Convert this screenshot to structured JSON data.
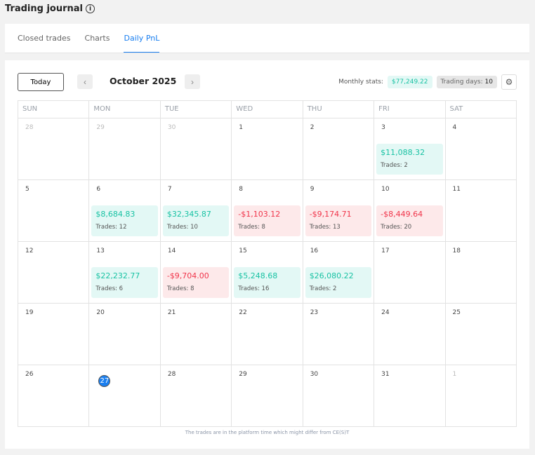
{
  "header": {
    "title": "Trading journal",
    "info_icon": "info-icon"
  },
  "tabs": [
    {
      "label": "Closed trades",
      "active": false
    },
    {
      "label": "Charts",
      "active": false
    },
    {
      "label": "Daily PnL",
      "active": true
    }
  ],
  "toolbar": {
    "today_label": "Today",
    "prev_icon": "‹",
    "next_icon": "›",
    "month": "October 2025",
    "stats_label": "Monthly stats:",
    "monthly_pnl": "$77,249.22",
    "trading_days_label": "Trading days:",
    "trading_days": "10",
    "settings_icon": "⚙"
  },
  "weekdays": [
    "SUN",
    "MON",
    "TUE",
    "WED",
    "THU",
    "FRI",
    "SAT"
  ],
  "weeks": [
    [
      {
        "d": "28",
        "muted": true
      },
      {
        "d": "29",
        "muted": true
      },
      {
        "d": "30",
        "muted": true
      },
      {
        "d": "1"
      },
      {
        "d": "2"
      },
      {
        "d": "3",
        "pnl": "$11,088.32",
        "trades": "Trades: 2",
        "type": "pos"
      },
      {
        "d": "4"
      }
    ],
    [
      {
        "d": "5"
      },
      {
        "d": "6",
        "pnl": "$8,684.83",
        "trades": "Trades: 12",
        "type": "pos"
      },
      {
        "d": "7",
        "pnl": "$32,345.87",
        "trades": "Trades: 10",
        "type": "pos"
      },
      {
        "d": "8",
        "pnl": "-$1,103.12",
        "trades": "Trades: 8",
        "type": "neg"
      },
      {
        "d": "9",
        "pnl": "-$9,174.71",
        "trades": "Trades: 13",
        "type": "neg"
      },
      {
        "d": "10",
        "pnl": "-$8,449.64",
        "trades": "Trades: 20",
        "type": "neg"
      },
      {
        "d": "11"
      }
    ],
    [
      {
        "d": "12"
      },
      {
        "d": "13",
        "pnl": "$22,232.77",
        "trades": "Trades: 6",
        "type": "pos"
      },
      {
        "d": "14",
        "pnl": "-$9,704.00",
        "trades": "Trades: 8",
        "type": "neg"
      },
      {
        "d": "15",
        "pnl": "$5,248.68",
        "trades": "Trades: 16",
        "type": "pos"
      },
      {
        "d": "16",
        "pnl": "$26,080.22",
        "trades": "Trades: 2",
        "type": "pos"
      },
      {
        "d": "17"
      },
      {
        "d": "18"
      }
    ],
    [
      {
        "d": "19"
      },
      {
        "d": "20"
      },
      {
        "d": "21"
      },
      {
        "d": "22"
      },
      {
        "d": "23"
      },
      {
        "d": "24"
      },
      {
        "d": "25"
      }
    ],
    [
      {
        "d": "26"
      },
      {
        "d": "27",
        "today": true
      },
      {
        "d": "28"
      },
      {
        "d": "29"
      },
      {
        "d": "30"
      },
      {
        "d": "31"
      },
      {
        "d": "1",
        "muted": true
      }
    ]
  ],
  "footer": "The trades are in the platform time which might differ from CE(S)T",
  "colors": {
    "accent": "#1a7ff0",
    "positive": "#18c2a3",
    "negative": "#f0344a"
  }
}
